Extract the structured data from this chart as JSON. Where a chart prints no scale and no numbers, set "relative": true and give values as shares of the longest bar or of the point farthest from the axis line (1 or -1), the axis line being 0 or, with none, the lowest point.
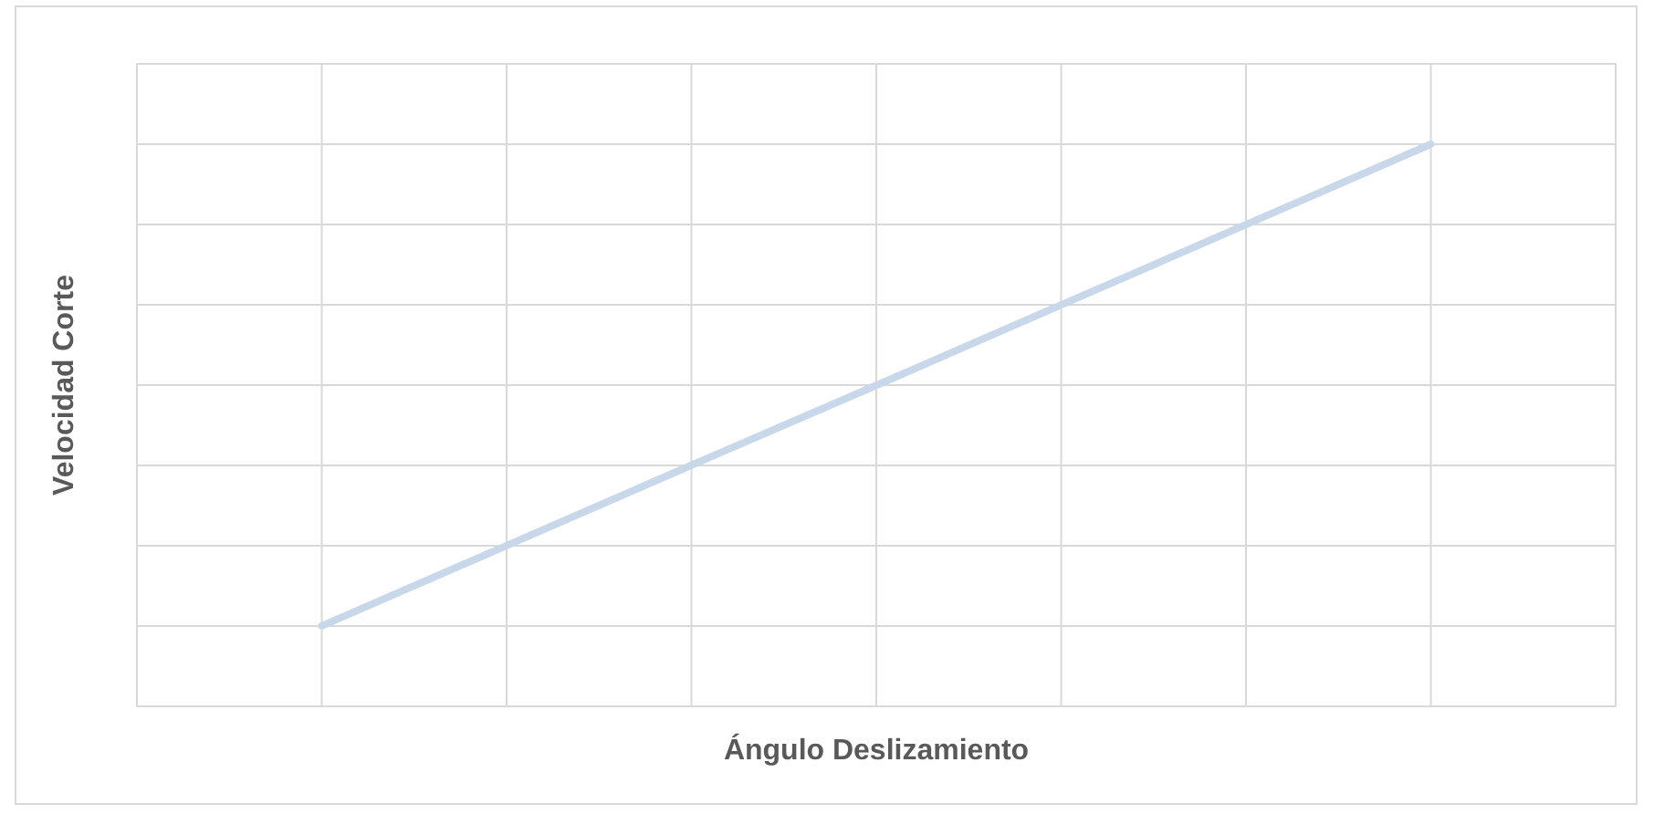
{
  "chart_data": {
    "type": "line",
    "xlabel": "Ángulo Deslizamiento",
    "ylabel": "Velocidad Corte",
    "relative": true,
    "grid": true,
    "marker": "none",
    "line_style": "solid",
    "categories": [
      null,
      null,
      null,
      null,
      null,
      null,
      null,
      null,
      null
    ],
    "series": [
      {
        "color": "#c9d7ea",
        "values": [
          null,
          0.143,
          0.286,
          0.429,
          0.571,
          0.714,
          0.857,
          1,
          null
        ]
      }
    ]
  }
}
